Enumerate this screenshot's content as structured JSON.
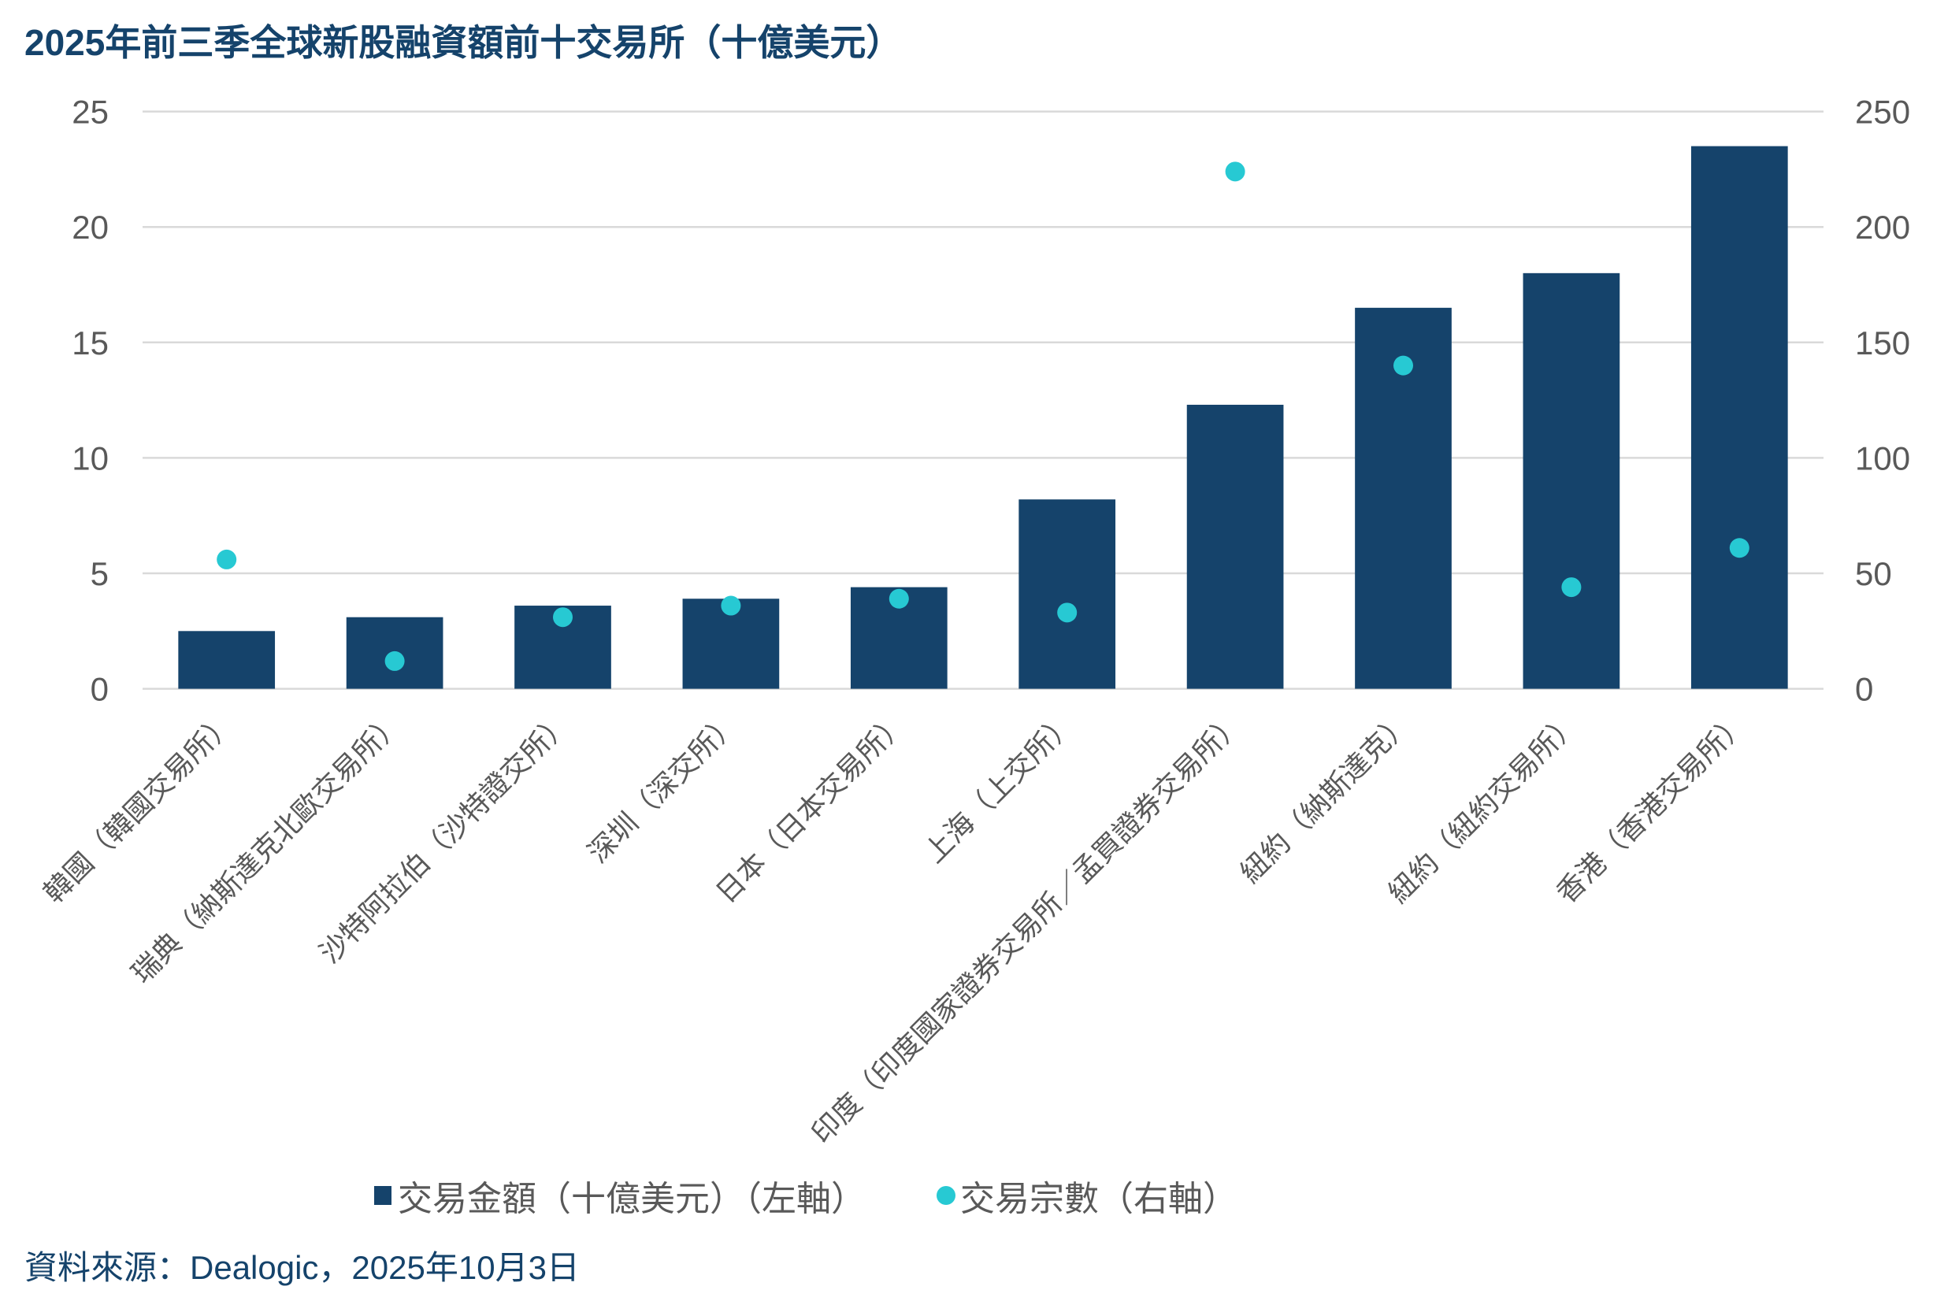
{
  "title": "2025年前三季全球新股融資額前十交易所（十億美元）",
  "legend": {
    "bars_label": "交易金額（十億美元）（左軸）",
    "dots_label": "交易宗數（右軸）"
  },
  "source": "資料來源：Dealogic，2025年10月3日",
  "colors": {
    "bar": "#15436B",
    "dot": "#27C9D3",
    "grid": "#D9D9D9",
    "axis_text": "#595959",
    "title": "#15436B"
  },
  "chart_data": {
    "type": "bar",
    "title": "2025年前三季全球新股融資額前十交易所（十億美元）",
    "xlabel": "",
    "ylabel": "",
    "y2label": "",
    "categories": [
      "韓國（韓國交易所）",
      "瑞典（納斯達克北歐交易所）",
      "沙特阿拉伯（沙特證交所）",
      "深圳（深交所）",
      "日本（日本交易所）",
      "上海（上交所）",
      "印度（印度國家證券交易所／孟買證券交易所）",
      "紐約（納斯達克）",
      "紐約（紐約交易所）",
      "香港（香港交易所）"
    ],
    "series": [
      {
        "name": "交易金額（十億美元）（左軸）",
        "type": "bar",
        "axis": "left",
        "color": "#15436B",
        "values": [
          2.5,
          3.1,
          3.6,
          3.9,
          4.4,
          8.2,
          12.3,
          16.5,
          18.0,
          23.5
        ]
      },
      {
        "name": "交易宗數（右軸）",
        "type": "scatter",
        "axis": "right",
        "color": "#27C9D3",
        "values": [
          56,
          12,
          31,
          36,
          39,
          33,
          224,
          140,
          44,
          61
        ]
      }
    ],
    "ylim": [
      0,
      25
    ],
    "y_ticks": [
      0,
      5,
      10,
      15,
      20,
      25
    ],
    "y2lim": [
      0,
      250
    ],
    "y2_ticks": [
      0,
      50,
      100,
      150,
      200,
      250
    ],
    "grid": true,
    "legend_position": "bottom"
  }
}
